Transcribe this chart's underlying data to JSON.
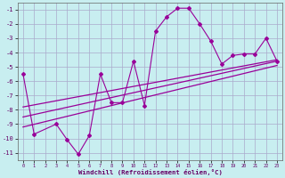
{
  "xlabel": "Windchill (Refroidissement éolien,°C)",
  "background_color": "#c8eef0",
  "line_color": "#990099",
  "grid_color": "#aaaacc",
  "x_data": [
    0,
    1,
    2,
    3,
    4,
    5,
    6,
    7,
    8,
    9,
    10,
    11,
    12,
    13,
    14,
    15,
    16,
    17,
    18,
    19,
    20,
    21,
    22,
    23
  ],
  "y_scatter": [
    -5.5,
    -9.7,
    null,
    -9.0,
    -10.1,
    -11.1,
    -9.8,
    -5.5,
    -7.5,
    -7.5,
    -4.6,
    -7.7,
    -2.5,
    -1.5,
    -0.9,
    -0.9,
    -2.0,
    -3.2,
    -4.8,
    -4.2,
    -4.1,
    -4.1,
    -3.0,
    -4.6
  ],
  "trend_lines": [
    {
      "x0": 0,
      "y0": -8.5,
      "x1": 23,
      "y1": -4.6
    },
    {
      "x0": 0,
      "y0": -7.8,
      "x1": 23,
      "y1": -4.5
    },
    {
      "x0": 0,
      "y0": -9.2,
      "x1": 23,
      "y1": -4.9
    }
  ],
  "xlim": [
    -0.5,
    23.5
  ],
  "ylim": [
    -11.5,
    -0.5
  ],
  "yticks": [
    -11,
    -10,
    -9,
    -8,
    -7,
    -6,
    -5,
    -4,
    -3,
    -2,
    -1
  ],
  "xticks": [
    0,
    1,
    2,
    3,
    4,
    5,
    6,
    7,
    8,
    9,
    10,
    11,
    12,
    13,
    14,
    15,
    16,
    17,
    18,
    19,
    20,
    21,
    22,
    23
  ]
}
